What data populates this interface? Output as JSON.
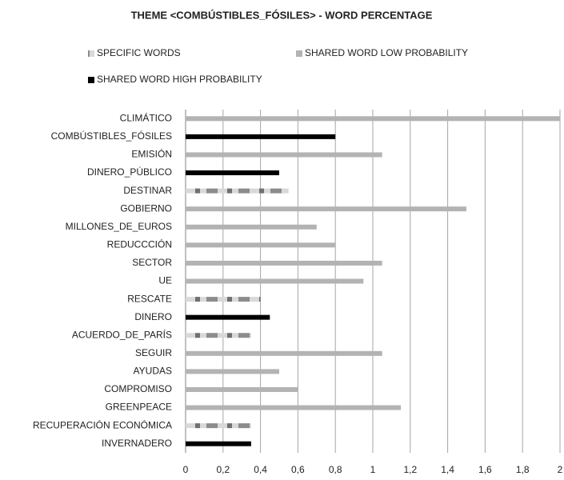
{
  "chart_data": {
    "type": "bar",
    "orientation": "horizontal",
    "title": "THEME <COMBÚSTIBLES_FÓSILES> - WORD PERCENTAGE",
    "categories": [
      "CLIMÁTICO",
      "COMBÚSTIBLES_FÓSILES",
      "EMISIÓN",
      "DINERO_PÚBLICO",
      "DESTINAR",
      "GOBIERNO",
      "MILLONES_DE_EUROS",
      "REDUCCCIÓN",
      "SECTOR",
      "UE",
      "RESCATE",
      "DINERO",
      "ACUERDO_DE_PARÍS",
      "SEGUIR",
      "AYUDAS",
      "COMPROMISO",
      "GREENPEACE",
      "RECUPERACIÓN ECONÓMICA",
      "INVERNADERO"
    ],
    "series": [
      {
        "name": "SPECIFIC WORDS",
        "color": "#808080",
        "pattern": true,
        "values": [
          null,
          null,
          null,
          null,
          0.55,
          null,
          null,
          null,
          null,
          null,
          0.4,
          null,
          0.35,
          null,
          null,
          null,
          null,
          0.35,
          null
        ]
      },
      {
        "name": "SHARED WORD LOW PROBABILITY",
        "color": "#b3b3b3",
        "values": [
          2.0,
          null,
          1.05,
          null,
          null,
          1.5,
          0.7,
          0.8,
          1.05,
          0.95,
          null,
          null,
          null,
          1.05,
          0.5,
          0.6,
          1.15,
          null,
          null
        ]
      },
      {
        "name": "SHARED WORD HIGH PROBABILITY",
        "color": "#000000",
        "values": [
          null,
          0.8,
          null,
          0.5,
          null,
          null,
          null,
          null,
          null,
          null,
          null,
          0.45,
          null,
          null,
          null,
          null,
          null,
          null,
          0.35
        ]
      }
    ],
    "xlim": [
      0,
      2
    ],
    "xticks": [
      0,
      {
        "value": 0.2,
        "label": "0,2"
      },
      {
        "value": 0.4,
        "label": "0,4"
      },
      {
        "value": 0.6,
        "label": "0,6"
      },
      {
        "value": 0.8,
        "label": "0,8"
      },
      1,
      {
        "value": 1.2,
        "label": "1,2"
      },
      {
        "value": 1.4,
        "label": "1,4"
      },
      {
        "value": 1.6,
        "label": "1,6"
      },
      {
        "value": 1.8,
        "label": "1,8"
      },
      2
    ],
    "grid": true
  }
}
